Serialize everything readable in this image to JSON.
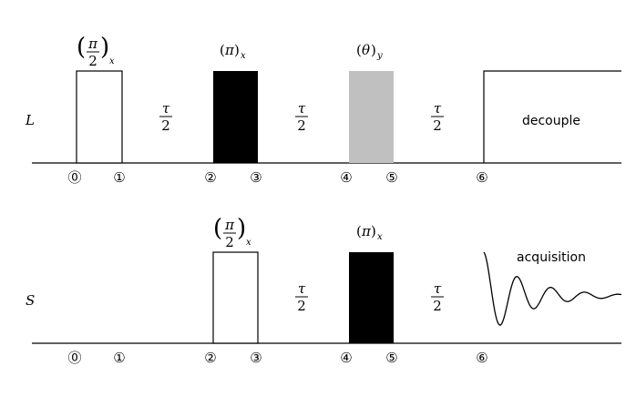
{
  "channels": [
    {
      "label": "L",
      "pulses": [
        {
          "angle": "π",
          "angle_denominator": "2",
          "phase": "x",
          "fill": "#ffffff"
        },
        {
          "angle": "π",
          "phase": "x",
          "fill": "#000000"
        },
        {
          "angle": "θ",
          "phase": "y",
          "fill": "#c0c0c0"
        }
      ],
      "end_block": "decouple"
    },
    {
      "label": "S",
      "pulses": [
        {
          "angle": "π",
          "angle_denominator": "2",
          "phase": "x",
          "fill": "#ffffff"
        },
        {
          "angle": "π",
          "phase": "x",
          "fill": "#000000"
        }
      ],
      "end_block": "acquisition"
    }
  ],
  "delay": {
    "numerator": "τ",
    "denominator": "2"
  },
  "time_points": [
    "⓪",
    "①",
    "②",
    "③",
    "④",
    "⑤",
    "⑥"
  ]
}
